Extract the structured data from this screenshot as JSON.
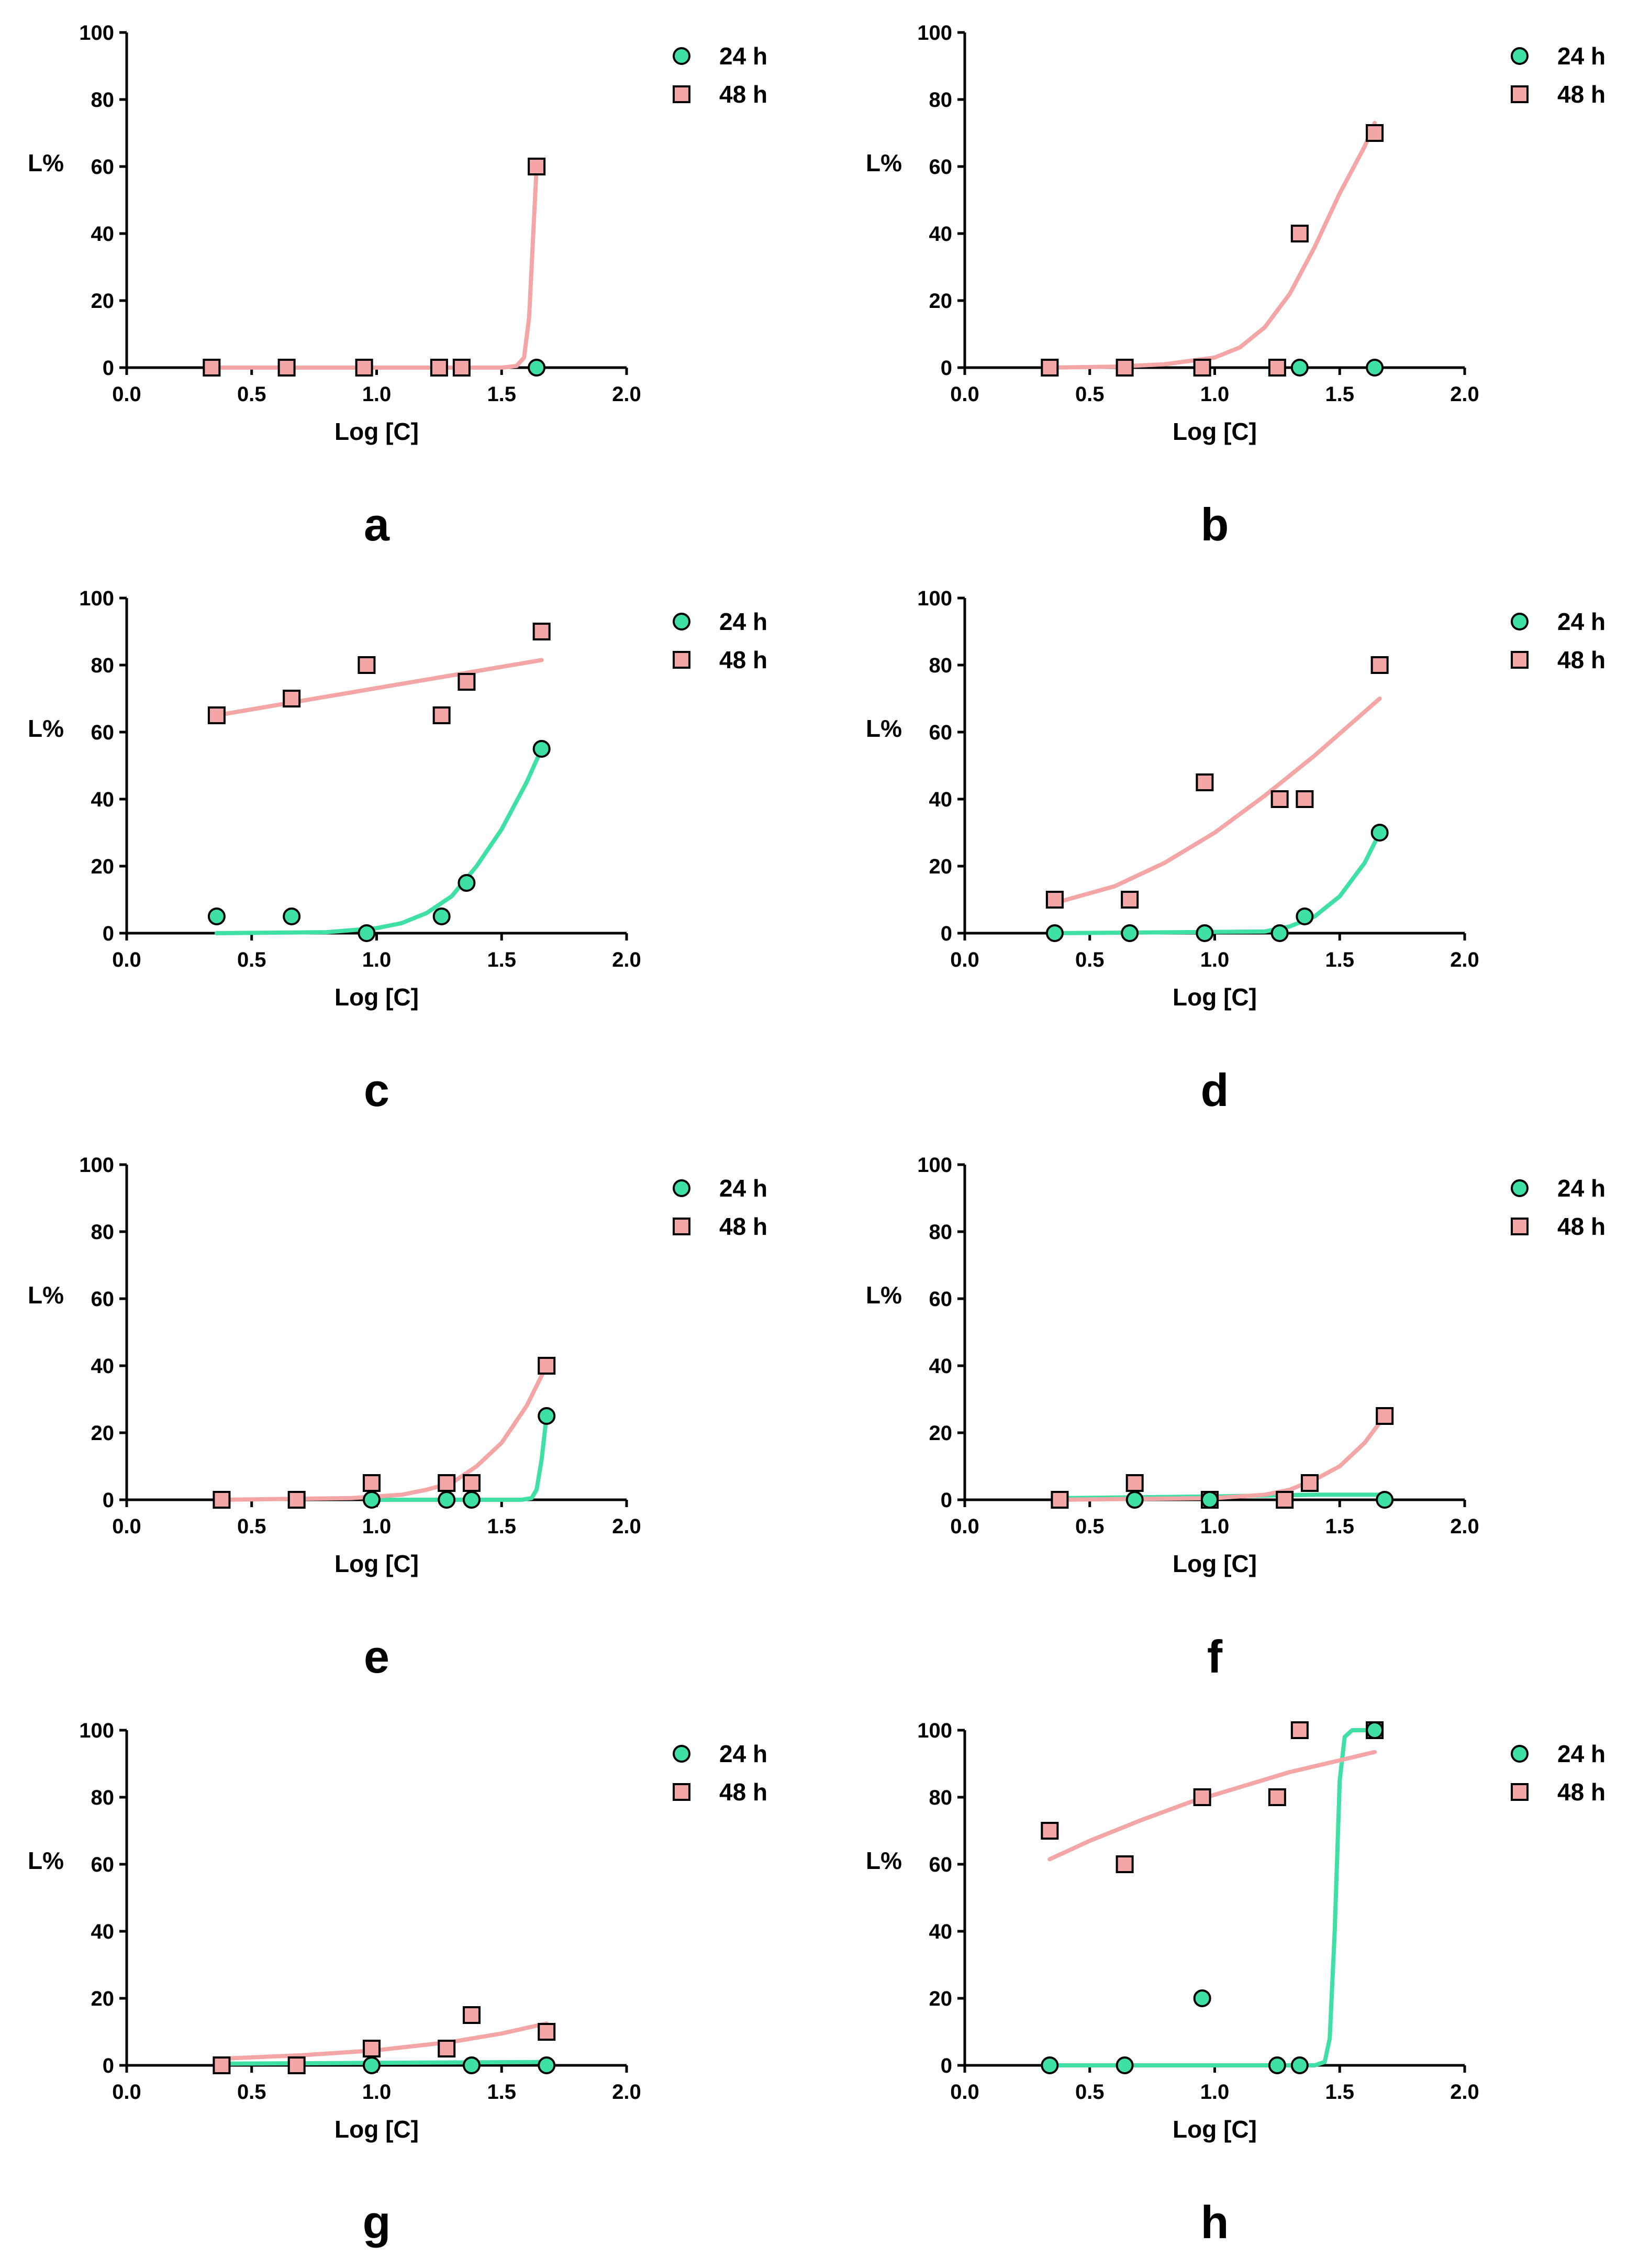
{
  "colors": {
    "series_24h": "#3ee0a4",
    "series_48h": "#f4a6a6",
    "axis": "#000000"
  },
  "chart_data": [
    {
      "panel": "a",
      "type": "scatter",
      "xlabel": "Log [C]",
      "ylabel": "L%",
      "xlim": [
        0.0,
        2.0
      ],
      "ylim": [
        0,
        100
      ],
      "xticks": [
        "0.0",
        "0.5",
        "1.0",
        "1.5",
        "2.0"
      ],
      "yticks": [
        "0",
        "20",
        "40",
        "60",
        "80",
        "100"
      ],
      "legend": [
        "24 h",
        "48 h"
      ],
      "series": [
        {
          "name": "24 h",
          "marker": "circle",
          "points": [
            [
              1.64,
              0
            ]
          ],
          "fit": []
        },
        {
          "name": "48 h",
          "marker": "square",
          "points": [
            [
              0.34,
              0
            ],
            [
              0.64,
              0
            ],
            [
              0.95,
              0
            ],
            [
              1.25,
              0
            ],
            [
              1.34,
              0
            ],
            [
              1.64,
              60
            ]
          ],
          "fit": [
            [
              0.34,
              0
            ],
            [
              1.5,
              0
            ],
            [
              1.56,
              0.5
            ],
            [
              1.59,
              3
            ],
            [
              1.61,
              15
            ],
            [
              1.63,
              45
            ],
            [
              1.64,
              60
            ]
          ]
        }
      ]
    },
    {
      "panel": "b",
      "type": "scatter",
      "xlabel": "Log [C]",
      "ylabel": "L%",
      "xlim": [
        0.0,
        2.0
      ],
      "ylim": [
        0,
        100
      ],
      "xticks": [
        "0.0",
        "0.5",
        "1.0",
        "1.5",
        "2.0"
      ],
      "yticks": [
        "0",
        "20",
        "40",
        "60",
        "80",
        "100"
      ],
      "legend": [
        "24 h",
        "48 h"
      ],
      "series": [
        {
          "name": "24 h",
          "marker": "circle",
          "points": [
            [
              1.34,
              0
            ],
            [
              1.64,
              0
            ]
          ],
          "fit": []
        },
        {
          "name": "48 h",
          "marker": "square",
          "points": [
            [
              0.34,
              0
            ],
            [
              0.64,
              0
            ],
            [
              0.95,
              0
            ],
            [
              1.25,
              0
            ],
            [
              1.34,
              40
            ],
            [
              1.64,
              70
            ]
          ],
          "fit": [
            [
              0.34,
              0
            ],
            [
              0.6,
              0.3
            ],
            [
              0.8,
              1
            ],
            [
              1.0,
              3
            ],
            [
              1.1,
              6
            ],
            [
              1.2,
              12
            ],
            [
              1.3,
              22
            ],
            [
              1.4,
              36
            ],
            [
              1.5,
              52
            ],
            [
              1.6,
              66
            ],
            [
              1.64,
              73
            ]
          ]
        }
      ]
    },
    {
      "panel": "c",
      "type": "scatter",
      "xlabel": "Log [C]",
      "ylabel": "L%",
      "xlim": [
        0.0,
        2.0
      ],
      "ylim": [
        0,
        100
      ],
      "xticks": [
        "0.0",
        "0.5",
        "1.0",
        "1.5",
        "2.0"
      ],
      "yticks": [
        "0",
        "20",
        "40",
        "60",
        "80",
        "100"
      ],
      "legend": [
        "24 h",
        "48 h"
      ],
      "series": [
        {
          "name": "24 h",
          "marker": "circle",
          "points": [
            [
              0.36,
              5
            ],
            [
              0.66,
              5
            ],
            [
              0.96,
              0
            ],
            [
              1.26,
              5
            ],
            [
              1.36,
              15
            ],
            [
              1.66,
              55
            ]
          ],
          "fit": [
            [
              0.36,
              0
            ],
            [
              0.8,
              0.3
            ],
            [
              1.0,
              1.5
            ],
            [
              1.1,
              3
            ],
            [
              1.2,
              6
            ],
            [
              1.3,
              11
            ],
            [
              1.4,
              20
            ],
            [
              1.5,
              31
            ],
            [
              1.6,
              45
            ],
            [
              1.66,
              55
            ]
          ]
        },
        {
          "name": "48 h",
          "marker": "square",
          "points": [
            [
              0.36,
              65
            ],
            [
              0.66,
              70
            ],
            [
              0.96,
              80
            ],
            [
              1.26,
              65
            ],
            [
              1.36,
              75
            ],
            [
              1.66,
              90
            ]
          ],
          "fit": [
            [
              0.36,
              65
            ],
            [
              1.66,
              81.5
            ]
          ]
        }
      ]
    },
    {
      "panel": "d",
      "type": "scatter",
      "xlabel": "Log [C]",
      "ylabel": "L%",
      "xlim": [
        0.0,
        2.0
      ],
      "ylim": [
        0,
        100
      ],
      "xticks": [
        "0.0",
        "0.5",
        "1.0",
        "1.5",
        "2.0"
      ],
      "yticks": [
        "0",
        "20",
        "40",
        "60",
        "80",
        "100"
      ],
      "legend": [
        "24 h",
        "48 h"
      ],
      "series": [
        {
          "name": "24 h",
          "marker": "circle",
          "points": [
            [
              0.36,
              0
            ],
            [
              0.66,
              0
            ],
            [
              0.96,
              0
            ],
            [
              1.26,
              0
            ],
            [
              1.36,
              5
            ],
            [
              1.66,
              30
            ]
          ],
          "fit": [
            [
              0.36,
              0
            ],
            [
              1.2,
              0.5
            ],
            [
              1.3,
              2
            ],
            [
              1.4,
              5
            ],
            [
              1.5,
              11
            ],
            [
              1.6,
              21
            ],
            [
              1.66,
              30
            ]
          ]
        },
        {
          "name": "48 h",
          "marker": "square",
          "points": [
            [
              0.36,
              10
            ],
            [
              0.66,
              10
            ],
            [
              0.96,
              45
            ],
            [
              1.26,
              40
            ],
            [
              1.36,
              40
            ],
            [
              1.66,
              80
            ]
          ],
          "fit": [
            [
              0.36,
              9
            ],
            [
              0.6,
              14
            ],
            [
              0.8,
              21
            ],
            [
              1.0,
              30
            ],
            [
              1.2,
              41
            ],
            [
              1.4,
              53
            ],
            [
              1.66,
              70
            ]
          ]
        }
      ]
    },
    {
      "panel": "e",
      "type": "scatter",
      "xlabel": "Log [C]",
      "ylabel": "L%",
      "xlim": [
        0.0,
        2.0
      ],
      "ylim": [
        0,
        100
      ],
      "xticks": [
        "0.0",
        "0.5",
        "1.0",
        "1.5",
        "2.0"
      ],
      "yticks": [
        "0",
        "20",
        "40",
        "60",
        "80",
        "100"
      ],
      "legend": [
        "24 h",
        "48 h"
      ],
      "series": [
        {
          "name": "24 h",
          "marker": "circle",
          "points": [
            [
              0.98,
              0
            ],
            [
              1.28,
              0
            ],
            [
              1.38,
              0
            ],
            [
              1.68,
              25
            ]
          ],
          "fit": [
            [
              0.98,
              0
            ],
            [
              1.58,
              0
            ],
            [
              1.62,
              0.5
            ],
            [
              1.64,
              3
            ],
            [
              1.66,
              12
            ],
            [
              1.68,
              25
            ]
          ]
        },
        {
          "name": "48 h",
          "marker": "square",
          "points": [
            [
              0.38,
              0
            ],
            [
              0.68,
              0
            ],
            [
              0.98,
              5
            ],
            [
              1.28,
              5
            ],
            [
              1.38,
              5
            ],
            [
              1.68,
              40
            ]
          ],
          "fit": [
            [
              0.38,
              0
            ],
            [
              0.9,
              0.5
            ],
            [
              1.1,
              1.5
            ],
            [
              1.2,
              3
            ],
            [
              1.3,
              5
            ],
            [
              1.4,
              10
            ],
            [
              1.5,
              17
            ],
            [
              1.6,
              28
            ],
            [
              1.68,
              40
            ]
          ]
        }
      ]
    },
    {
      "panel": "f",
      "type": "scatter",
      "xlabel": "Log [C]",
      "ylabel": "L%",
      "xlim": [
        0.0,
        2.0
      ],
      "ylim": [
        0,
        100
      ],
      "xticks": [
        "0.0",
        "0.5",
        "1.0",
        "1.5",
        "2.0"
      ],
      "yticks": [
        "0",
        "20",
        "40",
        "60",
        "80",
        "100"
      ],
      "legend": [
        "24 h",
        "48 h"
      ],
      "series": [
        {
          "name": "24 h",
          "marker": "circle",
          "points": [
            [
              0.68,
              0
            ],
            [
              0.98,
              0
            ],
            [
              1.68,
              0
            ]
          ],
          "fit": [
            [
              0.38,
              0.5
            ],
            [
              1.0,
              1
            ],
            [
              1.4,
              1.5
            ],
            [
              1.68,
              1.5
            ]
          ]
        },
        {
          "name": "48 h",
          "marker": "square",
          "points": [
            [
              0.38,
              0
            ],
            [
              0.68,
              5
            ],
            [
              0.98,
              0
            ],
            [
              1.28,
              0
            ],
            [
              1.38,
              5
            ],
            [
              1.68,
              25
            ]
          ],
          "fit": [
            [
              0.38,
              0
            ],
            [
              1.0,
              0.5
            ],
            [
              1.2,
              1.5
            ],
            [
              1.3,
              3
            ],
            [
              1.4,
              6
            ],
            [
              1.5,
              10
            ],
            [
              1.6,
              17
            ],
            [
              1.68,
              25
            ]
          ]
        }
      ]
    },
    {
      "panel": "g",
      "type": "scatter",
      "xlabel": "Log [C]",
      "ylabel": "L%",
      "xlim": [
        0.0,
        2.0
      ],
      "ylim": [
        0,
        100
      ],
      "xticks": [
        "0.0",
        "0.5",
        "1.0",
        "1.5",
        "2.0"
      ],
      "yticks": [
        "0",
        "20",
        "40",
        "60",
        "80",
        "100"
      ],
      "legend": [
        "24 h",
        "48 h"
      ],
      "series": [
        {
          "name": "24 h",
          "marker": "circle",
          "points": [
            [
              0.98,
              0
            ],
            [
              1.38,
              0
            ],
            [
              1.68,
              0
            ]
          ],
          "fit": [
            [
              0.38,
              0.5
            ],
            [
              1.68,
              1
            ]
          ]
        },
        {
          "name": "48 h",
          "marker": "square",
          "points": [
            [
              0.38,
              0
            ],
            [
              0.68,
              0
            ],
            [
              0.98,
              5
            ],
            [
              1.28,
              5
            ],
            [
              1.38,
              15
            ],
            [
              1.68,
              10
            ]
          ],
          "fit": [
            [
              0.38,
              2
            ],
            [
              0.7,
              3
            ],
            [
              1.0,
              4.5
            ],
            [
              1.3,
              7
            ],
            [
              1.5,
              9.5
            ],
            [
              1.68,
              12.5
            ]
          ]
        }
      ]
    },
    {
      "panel": "h",
      "type": "scatter",
      "xlabel": "Log [C]",
      "ylabel": "L%",
      "xlim": [
        0.0,
        2.0
      ],
      "ylim": [
        0,
        100
      ],
      "xticks": [
        "0.0",
        "0.5",
        "1.0",
        "1.5",
        "2.0"
      ],
      "yticks": [
        "0",
        "20",
        "40",
        "60",
        "80",
        "100"
      ],
      "legend": [
        "24 h",
        "48 h"
      ],
      "series": [
        {
          "name": "24 h",
          "marker": "circle",
          "points": [
            [
              0.34,
              0
            ],
            [
              0.64,
              0
            ],
            [
              0.95,
              20
            ],
            [
              1.25,
              0
            ],
            [
              1.34,
              0
            ],
            [
              1.64,
              100
            ]
          ],
          "fit": [
            [
              0.34,
              0
            ],
            [
              1.4,
              0
            ],
            [
              1.44,
              1
            ],
            [
              1.46,
              8
            ],
            [
              1.48,
              40
            ],
            [
              1.5,
              85
            ],
            [
              1.52,
              98
            ],
            [
              1.55,
              100
            ],
            [
              1.64,
              100
            ]
          ]
        },
        {
          "name": "48 h",
          "marker": "square",
          "points": [
            [
              0.34,
              70
            ],
            [
              0.64,
              60
            ],
            [
              0.95,
              80
            ],
            [
              1.25,
              80
            ],
            [
              1.34,
              100
            ],
            [
              1.64,
              100
            ]
          ],
          "fit": [
            [
              0.34,
              61.5
            ],
            [
              0.5,
              67
            ],
            [
              0.7,
              73
            ],
            [
              0.9,
              78.5
            ],
            [
              1.1,
              83
            ],
            [
              1.3,
              87.5
            ],
            [
              1.5,
              91
            ],
            [
              1.64,
              93.5
            ]
          ]
        }
      ]
    }
  ]
}
